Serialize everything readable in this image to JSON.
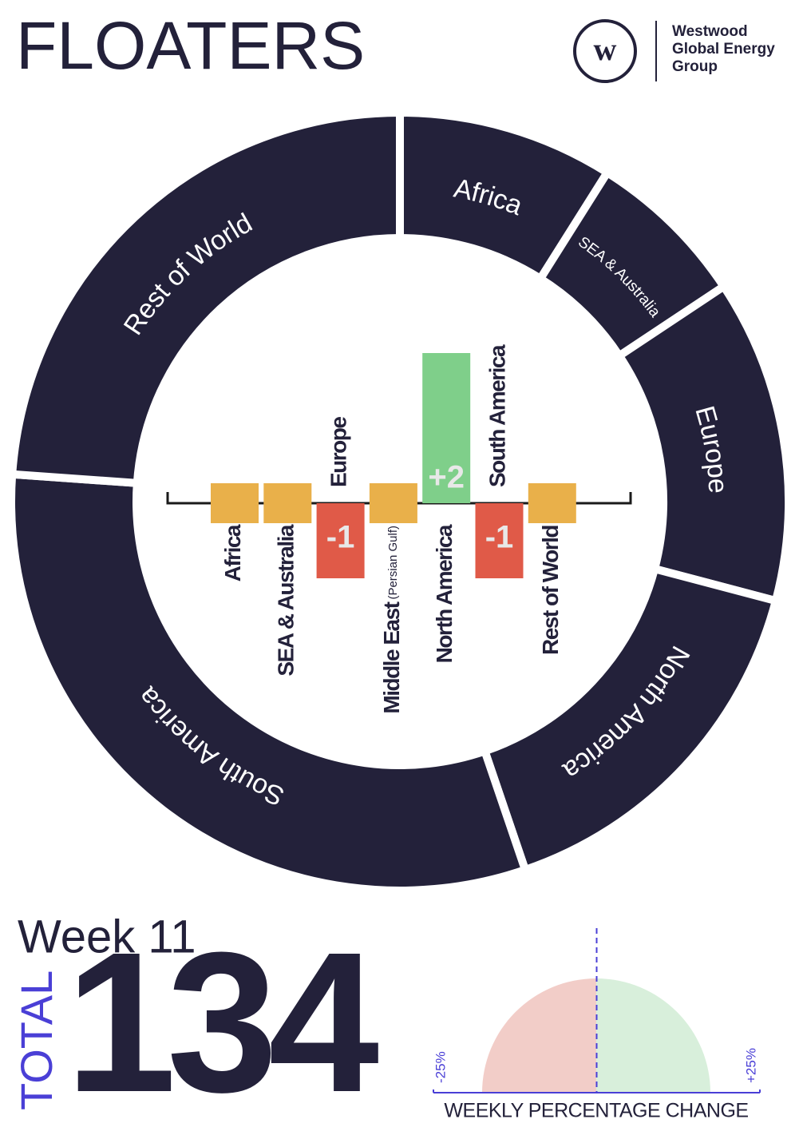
{
  "header": {
    "title": "FLOATERS",
    "logo_mark": "w",
    "logo_lines": [
      "Westwood",
      "Global Energy",
      "Group"
    ]
  },
  "chart_data": [
    {
      "type": "donut",
      "categories": [
        "Africa",
        "SEA & Australia",
        "Europe",
        "North America",
        "South America",
        "Rest of World"
      ],
      "values": [
        12,
        9,
        18,
        21,
        42,
        32
      ],
      "color": "#23213a"
    },
    {
      "type": "bar",
      "categories": [
        "Africa",
        "SEA & Australia",
        "Europe",
        "Middle East",
        "North America",
        "South America",
        "Rest of World"
      ],
      "category_notes": [
        null,
        null,
        null,
        "(Persian Gulf)",
        null,
        null,
        null
      ],
      "values": [
        0,
        0,
        -1,
        0,
        2,
        -1,
        0
      ],
      "value_labels": [
        null,
        null,
        "-1",
        null,
        "+2",
        "-1",
        null
      ],
      "colors": {
        "positive": "#7fcf8a",
        "negative": "#e05a48",
        "zero": "#e9b04a"
      }
    },
    {
      "type": "gauge",
      "title": "WEEKLY PERCENTAGE CHANGE",
      "value": 0,
      "xlim": [
        -25,
        25
      ],
      "xticks": [
        {
          "value": -25,
          "label": "-25%"
        },
        {
          "value": 25,
          "label": "+25%"
        }
      ],
      "colors": {
        "negative": "#f2cdc8",
        "positive": "#d8efdb",
        "marker": "#4a3fd6"
      }
    }
  ],
  "summary": {
    "week": "Week 11",
    "total_label": "TOTAL",
    "total": 134
  }
}
